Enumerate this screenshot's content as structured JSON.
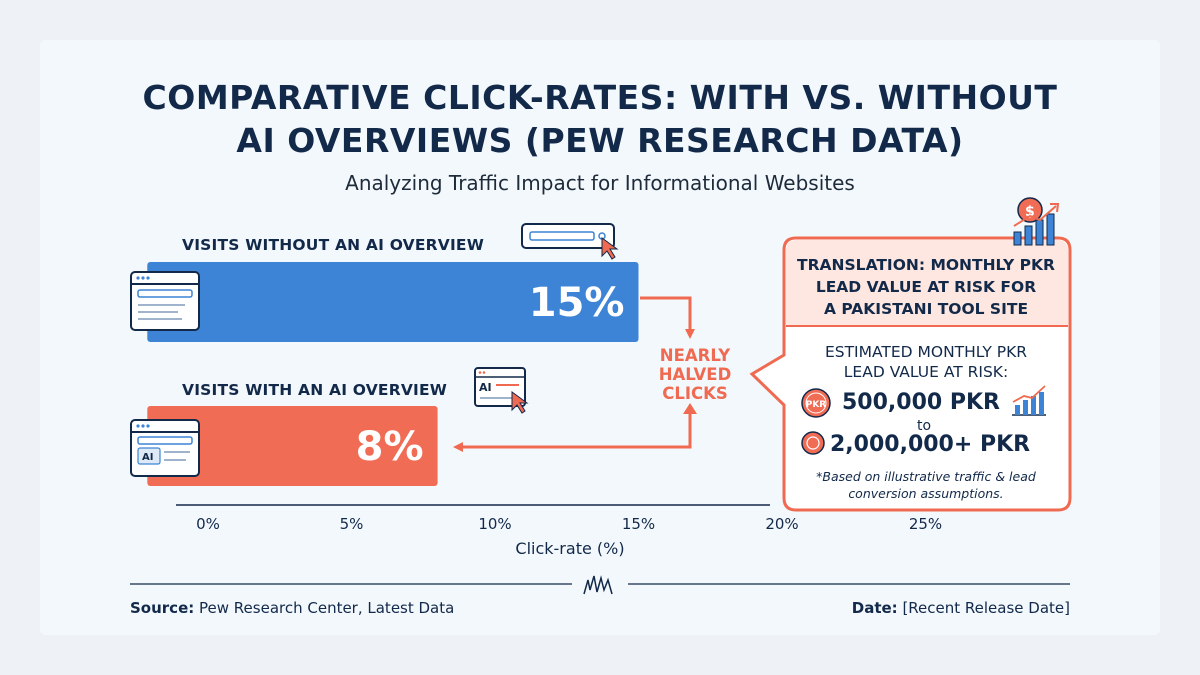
{
  "chart_data": {
    "type": "bar",
    "orientation": "horizontal",
    "title_line1": "COMPARATIVE CLICK-RATES: WITH VS. WITHOUT",
    "title_line2": "AI OVERVIEWS (PEW RESEARCH DATA)",
    "subtitle": "Analyzing Traffic Impact for Informational Websites",
    "xlabel": "Click-rate (%)",
    "xlim": [
      -1,
      30
    ],
    "ticks": [
      "0%",
      "5%",
      "10%",
      "15%",
      "20%",
      "25%"
    ],
    "tick_values": [
      0,
      5,
      10,
      15,
      20,
      25
    ],
    "categories": [
      "VISITS WITHOUT AN AI OVERVIEW",
      "VISITS WITH AN AI OVERVIEW"
    ],
    "values": [
      15,
      8
    ],
    "value_labels": [
      "15%",
      "8%"
    ],
    "colors": {
      "without": "#3d84d6",
      "with": "#f16c55",
      "accent": "#ef6a50",
      "navy": "#12294a"
    },
    "annotation": {
      "line1": "NEARLY",
      "line2": "HALVED",
      "line3": "CLICKS"
    }
  },
  "callout": {
    "title_line1": "TRANSLATION: MONTHLY PKR",
    "title_line2": "LEAD VALUE AT RISK FOR",
    "title_line3": "A PAKISTANI TOOL SITE",
    "est_line1": "ESTIMATED MONTHLY PKR",
    "est_line2": "LEAD VALUE AT RISK:",
    "low": "500,000 PKR",
    "to": "to",
    "high": "2,000,000+ PKR",
    "badge_text": "PKR",
    "footnote_line1": "*Based on illustrative traffic & lead",
    "footnote_line2": "conversion assumptions."
  },
  "icons": {
    "window_ai_text": "AI",
    "money_symbol": "$"
  },
  "footer": {
    "source_label": "Source:",
    "source_value": " Pew Research Center, Latest Data",
    "date_label": "Date:",
    "date_value": " [Recent Release Date]"
  }
}
